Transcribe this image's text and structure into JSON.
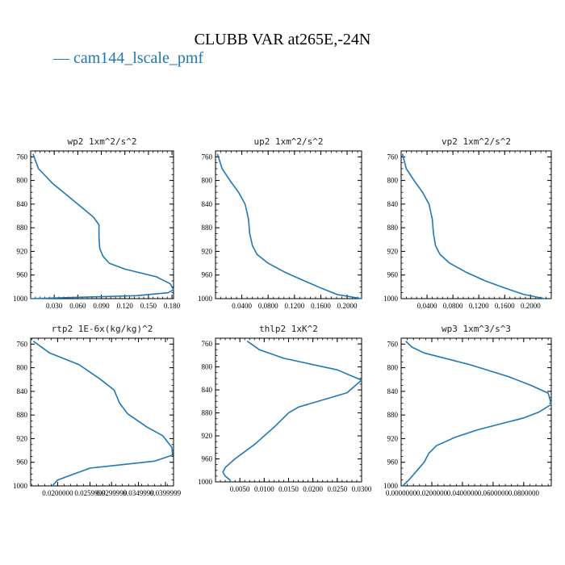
{
  "title": "CLUBB VAR at265E,-24N",
  "legend": {
    "label": "— cam144_lscale_pmf",
    "color": "#1f77b4"
  },
  "chart_data": [
    {
      "type": "line",
      "title": "wp2   1xm^2/s^2",
      "xlim": [
        0.0,
        0.182
      ],
      "ylim": [
        1000,
        750
      ],
      "y_inverted": true,
      "yticks": [
        "760",
        "800",
        "840",
        "880",
        "920",
        "960",
        "1000"
      ],
      "xticks": [
        "0.030",
        "0.060",
        "0.090",
        "0.120",
        "0.150",
        "0.180"
      ],
      "series": [
        {
          "x": [
            0.003,
            0.01,
            0.028,
            0.06,
            0.08,
            0.087,
            0.087,
            0.088,
            0.092,
            0.1,
            0.12,
            0.16,
            0.178,
            0.182,
            0.175,
            0.135,
            0.0
          ],
          "y": [
            755,
            780,
            805,
            840,
            862,
            875,
            895,
            915,
            928,
            940,
            950,
            963,
            975,
            985,
            990,
            995,
            1000
          ]
        }
      ]
    },
    {
      "type": "line",
      "title": "up2   1xm^2/s^2",
      "xlim": [
        0.0,
        0.222
      ],
      "ylim": [
        1000,
        750
      ],
      "y_inverted": true,
      "yticks": [
        "760",
        "800",
        "840",
        "880",
        "920",
        "960",
        "1000"
      ],
      "xticks": [
        "0.0400",
        "0.0800",
        "0.1200",
        "0.1600",
        "0.2000"
      ],
      "series": [
        {
          "x": [
            0.003,
            0.01,
            0.022,
            0.035,
            0.045,
            0.05,
            0.052,
            0.056,
            0.063,
            0.08,
            0.105,
            0.135,
            0.16,
            0.185,
            0.222
          ],
          "y": [
            755,
            780,
            800,
            820,
            840,
            865,
            890,
            910,
            925,
            940,
            955,
            970,
            982,
            993,
            1000
          ]
        }
      ]
    },
    {
      "type": "line",
      "title": "vp2   1xm^2/s^2",
      "xlim": [
        0.0,
        0.232
      ],
      "ylim": [
        1000,
        750
      ],
      "y_inverted": true,
      "yticks": [
        "760",
        "800",
        "840",
        "880",
        "920",
        "960",
        "1000"
      ],
      "xticks": [
        "0.0400",
        "0.0800",
        "0.1200",
        "0.1600",
        "0.2000"
      ],
      "series": [
        {
          "x": [
            0.002,
            0.008,
            0.02,
            0.033,
            0.043,
            0.048,
            0.05,
            0.053,
            0.06,
            0.075,
            0.1,
            0.13,
            0.16,
            0.19,
            0.222
          ],
          "y": [
            755,
            780,
            800,
            820,
            840,
            865,
            890,
            910,
            925,
            940,
            955,
            970,
            982,
            993,
            1000
          ]
        }
      ]
    },
    {
      "type": "line",
      "title": "rtp2   1E-6x(kg/kg)^2",
      "xlim": [
        0.015,
        0.0415
      ],
      "ylim": [
        1000,
        750
      ],
      "y_inverted": true,
      "yticks": [
        "760",
        "800",
        "840",
        "880",
        "920",
        "960",
        "1000"
      ],
      "xticks": [
        "0.0200000",
        "0.0259999",
        "0.0299999",
        "0.0349999",
        "0.0399999"
      ],
      "series": [
        {
          "x": [
            0.0155,
            0.0185,
            0.024,
            0.028,
            0.0305,
            0.0315,
            0.033,
            0.0365,
            0.0395,
            0.0412,
            0.0413,
            0.038,
            0.026,
            0.0215,
            0.02,
            0.0195,
            0.019
          ],
          "y": [
            755,
            775,
            795,
            820,
            838,
            860,
            878,
            900,
            915,
            935,
            948,
            958,
            970,
            985,
            990,
            995,
            1000
          ]
        }
      ]
    },
    {
      "type": "line",
      "title": "thlp2   1xK^2",
      "xlim": [
        0.0,
        0.03
      ],
      "ylim": [
        1000,
        750
      ],
      "y_inverted": true,
      "yticks": [
        "760",
        "800",
        "840",
        "880",
        "920",
        "960",
        "1000"
      ],
      "xticks": [
        "0.0050",
        "0.0100",
        "0.0150",
        "0.0200",
        "0.0250",
        "0.0300"
      ],
      "series": [
        {
          "x": [
            0.0065,
            0.009,
            0.014,
            0.025,
            0.03,
            0.027,
            0.017,
            0.015,
            0.012,
            0.008,
            0.004,
            0.002,
            0.0015,
            0.002,
            0.003
          ],
          "y": [
            755,
            770,
            785,
            805,
            823,
            845,
            870,
            880,
            905,
            935,
            960,
            975,
            983,
            990,
            997
          ]
        }
      ]
    },
    {
      "type": "line",
      "title": "wp3   1xm^3/s^3",
      "xlim": [
        0.0,
        0.098
      ],
      "ylim": [
        1000,
        750
      ],
      "y_inverted": true,
      "yticks": [
        "760",
        "800",
        "840",
        "880",
        "920",
        "960",
        "1000"
      ],
      "xticks": [
        "0.0000000",
        "0.0200000",
        "0.0400000",
        "0.0600000",
        "0.0800000"
      ],
      "series": [
        {
          "x": [
            0.003,
            0.007,
            0.015,
            0.045,
            0.07,
            0.085,
            0.096,
            0.098,
            0.09,
            0.08,
            0.05,
            0.036,
            0.023,
            0.018,
            0.015,
            0.01,
            0.005,
            0.001
          ],
          "y": [
            755,
            765,
            775,
            795,
            815,
            830,
            843,
            862,
            875,
            885,
            905,
            917,
            932,
            945,
            960,
            975,
            990,
            1000
          ]
        }
      ]
    }
  ]
}
